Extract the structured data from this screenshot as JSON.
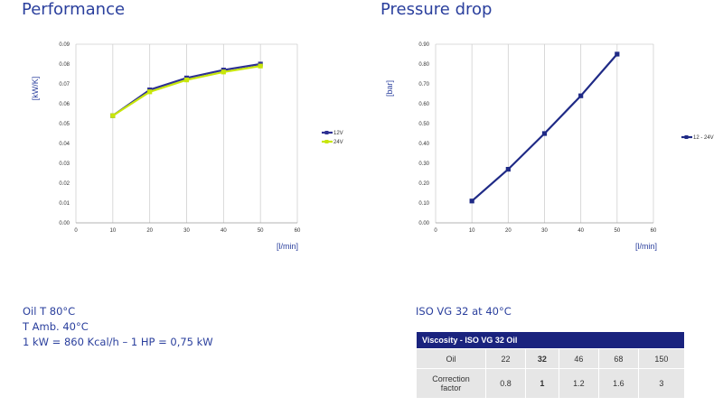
{
  "performance": {
    "title": "Performance",
    "chart_data": {
      "type": "line",
      "title": "Performance",
      "xlabel": "[l/min]",
      "ylabel": "[kW/K]",
      "x": [
        10,
        20,
        30,
        40,
        50
      ],
      "xlim": [
        0,
        60
      ],
      "ylim": [
        0,
        0.09
      ],
      "x_ticks": [
        "0",
        "10",
        "20",
        "30",
        "40",
        "50",
        "60"
      ],
      "y_ticks": [
        "0.00",
        "0.01",
        "0.02",
        "0.03",
        "0.04",
        "0.05",
        "0.06",
        "0.07",
        "0.08",
        "0.09"
      ],
      "grid": "vertical",
      "legend": "right",
      "series": [
        {
          "name": "12V",
          "values": [
            0.054,
            0.067,
            0.073,
            0.077,
            0.08
          ],
          "color": "#2e3192"
        },
        {
          "name": "24V",
          "values": [
            0.054,
            0.066,
            0.072,
            0.076,
            0.079
          ],
          "color": "#c8e60a"
        }
      ]
    }
  },
  "pressure_drop": {
    "title": "Pressure drop",
    "chart_data": {
      "type": "line",
      "title": "Pressure drop",
      "xlabel": "[l/min]",
      "ylabel": "[bar]",
      "x": [
        10,
        20,
        30,
        40,
        50
      ],
      "xlim": [
        0,
        60
      ],
      "ylim": [
        0,
        0.9
      ],
      "x_ticks": [
        "0",
        "10",
        "20",
        "30",
        "40",
        "50",
        "60"
      ],
      "y_ticks": [
        "0.00",
        "0.10",
        "0.20",
        "0.30",
        "0.40",
        "0.50",
        "0.60",
        "0.70",
        "0.80",
        "0.90"
      ],
      "grid": "vertical",
      "legend": "right",
      "series": [
        {
          "name": "12 - 24V",
          "values": [
            0.11,
            0.27,
            0.45,
            0.64,
            0.85
          ],
          "color": "#1f2a86"
        }
      ]
    }
  },
  "notes": {
    "line1": "Oil T 80°C",
    "line2": "T Amb. 40°C",
    "line3": "1 kW = 860 Kcal/h – 1 HP = 0,75 kW"
  },
  "viscosity": {
    "note": "ISO VG 32 at 40°C",
    "header": "Viscosity - ISO VG 32 Oil",
    "oil_label": "Oil",
    "oil_values": [
      "22",
      "32",
      "46",
      "68",
      "150"
    ],
    "factor_label_1": "Correction",
    "factor_label_2": "factor",
    "factor_values": [
      "0.8",
      "1",
      "1.2",
      "1.6",
      "3"
    ]
  }
}
